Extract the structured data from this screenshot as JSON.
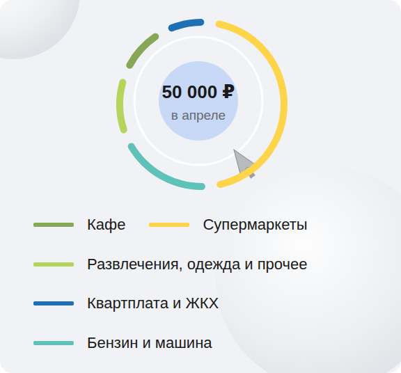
{
  "chart_data": {
    "type": "donut",
    "center_label": "50 000 ₽",
    "center_sublabel": "в апреле",
    "categories": [
      "Квартплата и ЖКХ",
      "Супермаркеты",
      "Бензин и машина",
      "Развлечения, одежда и прочее",
      "Кафе"
    ],
    "values": [
      4000,
      25000,
      10000,
      6000,
      5000
    ],
    "colors": [
      "#1f6fb5",
      "#fdd44a",
      "#5fc2b9",
      "#b6d35c",
      "#86a856"
    ],
    "legend": "bottom",
    "data_labels": false
  }
}
